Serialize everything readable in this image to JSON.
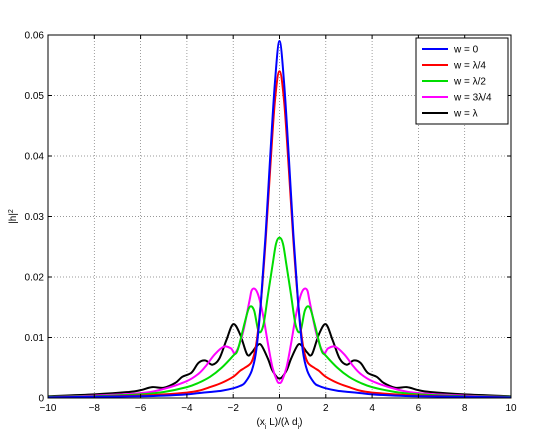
{
  "chart_data": {
    "type": "line",
    "xlabel": "(x_i L)/(λ d_i)",
    "ylabel": "|h|^2",
    "xlim": [
      -10,
      10
    ],
    "ylim": [
      0,
      0.06
    ],
    "xticks": [
      -10,
      -8,
      -6,
      -4,
      -2,
      0,
      2,
      4,
      6,
      8,
      10
    ],
    "xtick_labels": [
      "−10",
      "−8",
      "−6",
      "−4",
      "−2",
      "0",
      "2",
      "4",
      "6",
      "8",
      "10"
    ],
    "yticks": [
      0,
      0.01,
      0.02,
      0.03,
      0.04,
      0.05,
      0.06
    ],
    "ytick_labels": [
      "0",
      "0.01",
      "0.02",
      "0.03",
      "0.04",
      "0.05",
      "0.06"
    ],
    "grid": true,
    "legend_position": "top-right",
    "series": [
      {
        "name": "w = 0",
        "color": "#0000ff",
        "x": [
          -10,
          -8,
          -6,
          -5,
          -4,
          -3.5,
          -3,
          -2.5,
          -2,
          -1.7,
          -1.5,
          -1.2,
          -1,
          -0.8,
          -0.6,
          -0.4,
          -0.2,
          0,
          0.2,
          0.4,
          0.6,
          0.8,
          1,
          1.2,
          1.5,
          1.7,
          2,
          2.5,
          3,
          3.5,
          4,
          5,
          6,
          8,
          10
        ],
        "y": [
          0.0001,
          0.0002,
          0.0003,
          0.0004,
          0.0006,
          0.0008,
          0.001,
          0.0012,
          0.0016,
          0.002,
          0.0025,
          0.0045,
          0.008,
          0.016,
          0.027,
          0.04,
          0.052,
          0.059,
          0.052,
          0.04,
          0.027,
          0.016,
          0.008,
          0.0045,
          0.0025,
          0.002,
          0.0016,
          0.0012,
          0.001,
          0.0008,
          0.0006,
          0.0004,
          0.0003,
          0.0002,
          0.0001
        ]
      },
      {
        "name": "w = λ/4",
        "color": "#ff0000",
        "x": [
          -10,
          -8,
          -6,
          -5,
          -4,
          -3.5,
          -3,
          -2.5,
          -2,
          -1.7,
          -1.5,
          -1.2,
          -1,
          -0.8,
          -0.6,
          -0.4,
          -0.2,
          0,
          0.2,
          0.4,
          0.6,
          0.8,
          1,
          1.2,
          1.5,
          1.7,
          2,
          2.5,
          3,
          3.5,
          4,
          5,
          6,
          8,
          10
        ],
        "y": [
          0.0001,
          0.0002,
          0.0004,
          0.0006,
          0.0009,
          0.0012,
          0.0018,
          0.0025,
          0.0035,
          0.0045,
          0.005,
          0.006,
          0.009,
          0.016,
          0.026,
          0.038,
          0.049,
          0.054,
          0.049,
          0.038,
          0.026,
          0.016,
          0.009,
          0.006,
          0.005,
          0.0045,
          0.0035,
          0.0025,
          0.0018,
          0.0012,
          0.0009,
          0.0006,
          0.0004,
          0.0002,
          0.0001
        ]
      },
      {
        "name": "w = λ/2",
        "color": "#00dd00",
        "x": [
          -10,
          -8,
          -6,
          -5,
          -4,
          -3.5,
          -3,
          -2.5,
          -2,
          -1.8,
          -1.5,
          -1.3,
          -1.1,
          -0.9,
          -0.7,
          -0.5,
          -0.3,
          -0.15,
          0,
          0.15,
          0.3,
          0.5,
          0.7,
          0.9,
          1.1,
          1.3,
          1.5,
          1.8,
          2,
          2.5,
          3,
          3.5,
          4,
          5,
          6,
          8,
          10
        ],
        "y": [
          0.0002,
          0.0003,
          0.0006,
          0.001,
          0.0018,
          0.0025,
          0.0035,
          0.005,
          0.007,
          0.008,
          0.0125,
          0.015,
          0.0145,
          0.011,
          0.012,
          0.017,
          0.022,
          0.0255,
          0.0265,
          0.0255,
          0.022,
          0.017,
          0.012,
          0.011,
          0.0145,
          0.015,
          0.0125,
          0.008,
          0.007,
          0.005,
          0.0035,
          0.0025,
          0.0018,
          0.001,
          0.0006,
          0.0003,
          0.0002
        ]
      },
      {
        "name": "w = 3λ/4",
        "color": "#ff00ff",
        "x": [
          -10,
          -8,
          -6,
          -5,
          -4,
          -3.5,
          -3.2,
          -2.8,
          -2.4,
          -2.1,
          -1.9,
          -1.6,
          -1.3,
          -1.2,
          -1.05,
          -0.9,
          -0.7,
          -0.5,
          -0.3,
          -0.1,
          0,
          0.1,
          0.3,
          0.5,
          0.7,
          0.9,
          1.05,
          1.2,
          1.3,
          1.6,
          1.9,
          2.1,
          2.4,
          2.8,
          3.2,
          3.5,
          4,
          5,
          6,
          8,
          10
        ],
        "y": [
          0.0002,
          0.0004,
          0.0008,
          0.0015,
          0.0028,
          0.004,
          0.0052,
          0.0072,
          0.0085,
          0.0082,
          0.0075,
          0.0105,
          0.016,
          0.0178,
          0.018,
          0.0168,
          0.0135,
          0.009,
          0.005,
          0.0028,
          0.0025,
          0.0028,
          0.005,
          0.009,
          0.0135,
          0.0168,
          0.018,
          0.0178,
          0.016,
          0.0105,
          0.0075,
          0.0082,
          0.0085,
          0.0072,
          0.0052,
          0.004,
          0.0028,
          0.0015,
          0.0008,
          0.0004,
          0.0002
        ]
      },
      {
        "name": "w = λ",
        "color": "#000000",
        "x": [
          -10,
          -8,
          -6.5,
          -6,
          -5.5,
          -5,
          -4.5,
          -4.2,
          -3.8,
          -3.5,
          -3.2,
          -2.9,
          -2.6,
          -2.3,
          -2,
          -1.7,
          -1.4,
          -1.2,
          -1,
          -0.8,
          -0.5,
          -0.3,
          0,
          0.3,
          0.5,
          0.8,
          1,
          1.2,
          1.4,
          1.7,
          2,
          2.3,
          2.6,
          2.9,
          3.2,
          3.5,
          3.8,
          4.2,
          4.5,
          5,
          5.5,
          6,
          6.5,
          8,
          10
        ],
        "y": [
          0.0003,
          0.0006,
          0.001,
          0.0013,
          0.0018,
          0.0017,
          0.0025,
          0.0035,
          0.0042,
          0.0058,
          0.0062,
          0.0055,
          0.0065,
          0.0095,
          0.0122,
          0.0105,
          0.0072,
          0.0075,
          0.0085,
          0.0088,
          0.0065,
          0.0045,
          0.0032,
          0.0045,
          0.0065,
          0.0088,
          0.0085,
          0.0075,
          0.0072,
          0.0105,
          0.0122,
          0.0095,
          0.0065,
          0.0055,
          0.0062,
          0.0058,
          0.0042,
          0.0035,
          0.0025,
          0.0017,
          0.0018,
          0.0013,
          0.001,
          0.0006,
          0.0003
        ]
      }
    ]
  }
}
